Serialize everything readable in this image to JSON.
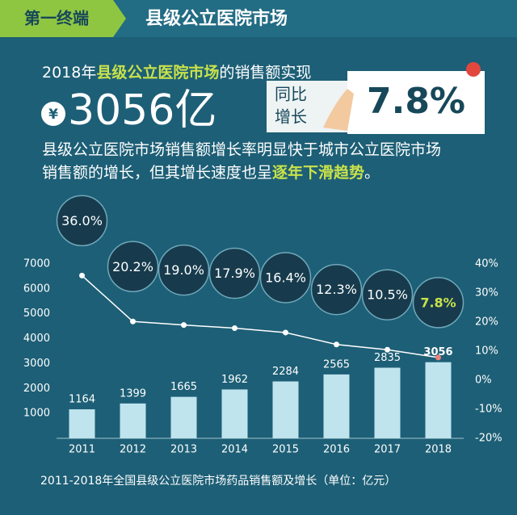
{
  "header": {
    "section": "第一终端",
    "title": "县级公立医院市场"
  },
  "summary": {
    "line1": [
      "2018年",
      "县级公立医院市场",
      "的销售额实现"
    ],
    "currency": "¥",
    "amount": "3056亿",
    "yoy": [
      "同比",
      "增长"
    ],
    "growth": "7.8%",
    "para1": "县级公立医院市场销售额增长率明显快于城市公立医院市场",
    "para2": [
      "销售额的增长，但其增长速度也呈",
      "逐年下滑趋势",
      "。"
    ]
  },
  "chart_data": {
    "type": "bar",
    "categories": [
      "2011",
      "2012",
      "2013",
      "2014",
      "2015",
      "2016",
      "2017",
      "2018"
    ],
    "series": [
      {
        "type": "bar",
        "color": "#bfe4ee",
        "values": [
          1164,
          1399,
          1665,
          1962,
          2284,
          2565,
          2835,
          3056
        ]
      },
      {
        "type": "line",
        "axis": "y2",
        "color": "#ffffff",
        "values": [
          36.0,
          20.2,
          19.0,
          17.9,
          16.4,
          12.3,
          10.5,
          7.8
        ],
        "value_labels": [
          "36.0%",
          "20.2%",
          "19.0%",
          "17.9%",
          "16.4%",
          "12.3%",
          "10.5%",
          "7.8%"
        ]
      }
    ],
    "ylim": [
      0,
      7000
    ],
    "yticks": [
      1000,
      2000,
      3000,
      4000,
      5000,
      6000,
      7000
    ],
    "y2lim": [
      -20,
      40
    ],
    "y2ticks": [
      {
        "value": -20,
        "label": "-20%"
      },
      {
        "value": -10,
        "label": "-10%"
      },
      {
        "value": 0,
        "label": "0%"
      },
      {
        "value": 10,
        "label": "10%"
      },
      {
        "value": 20,
        "label": "20%"
      },
      {
        "value": 30,
        "label": "30%"
      },
      {
        "value": 40,
        "label": "40%"
      }
    ],
    "caption": "2011-2018年全国县级公立医院市场药品销售额及增长（单位：亿元）"
  }
}
